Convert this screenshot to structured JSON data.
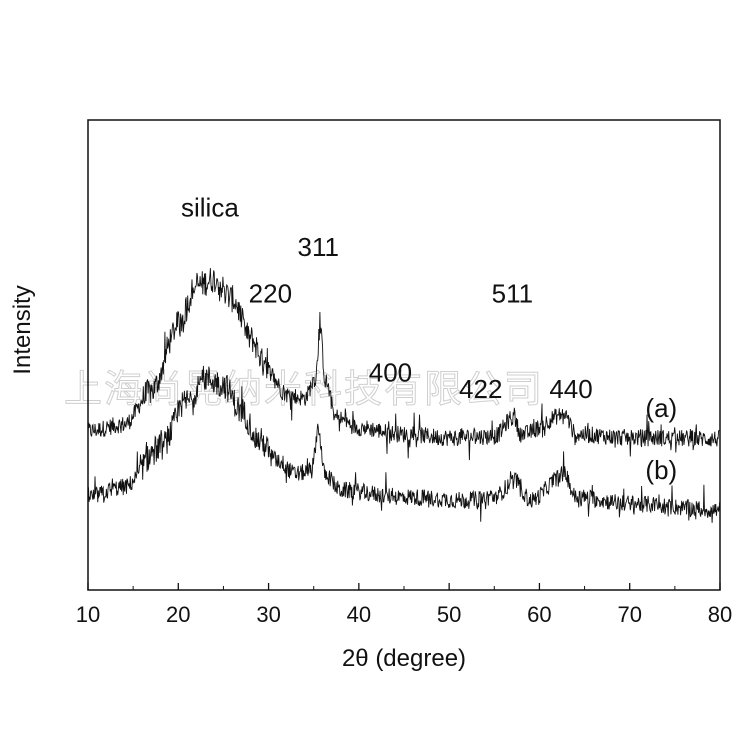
{
  "watermark_text": "上海尚晃纳米科技有限公司",
  "chart_data": {
    "type": "line",
    "title": "",
    "xlabel": "2θ (degree)",
    "ylabel": "Intensity",
    "xlim": [
      10,
      80
    ],
    "x_ticks": [
      10,
      20,
      30,
      40,
      50,
      60,
      70,
      80
    ],
    "y_ticks_shown": false,
    "grid": false,
    "line_color": "#111111",
    "series": [
      {
        "name": "(a)",
        "baseline": 1.0,
        "points": [
          [
            10,
            1.0
          ],
          [
            14,
            1.1
          ],
          [
            17,
            1.6
          ],
          [
            20,
            2.6
          ],
          [
            22,
            3.2
          ],
          [
            24,
            3.3
          ],
          [
            26,
            3.0
          ],
          [
            28,
            2.4
          ],
          [
            30,
            1.9
          ],
          [
            32,
            1.55
          ],
          [
            34,
            1.5
          ],
          [
            35.2,
            1.8
          ],
          [
            35.7,
            2.55
          ],
          [
            36.3,
            1.75
          ],
          [
            37.5,
            1.2
          ],
          [
            40,
            1.05
          ],
          [
            45,
            0.95
          ],
          [
            50,
            0.9
          ],
          [
            55,
            0.92
          ],
          [
            57.1,
            1.2
          ],
          [
            58,
            0.95
          ],
          [
            62.8,
            1.25
          ],
          [
            64,
            0.95
          ],
          [
            70,
            0.9
          ],
          [
            80,
            0.88
          ]
        ]
      },
      {
        "name": "(b)",
        "baseline": 0.0,
        "points": [
          [
            10,
            0.0
          ],
          [
            14,
            0.15
          ],
          [
            18,
            0.75
          ],
          [
            21,
            1.45
          ],
          [
            23,
            1.8
          ],
          [
            25,
            1.7
          ],
          [
            27,
            1.3
          ],
          [
            29,
            0.85
          ],
          [
            31,
            0.55
          ],
          [
            33,
            0.35
          ],
          [
            34.8,
            0.4
          ],
          [
            35.5,
            1.05
          ],
          [
            36.2,
            0.35
          ],
          [
            38,
            0.1
          ],
          [
            45,
            0.0
          ],
          [
            52,
            -0.05
          ],
          [
            55,
            0.0
          ],
          [
            57.3,
            0.25
          ],
          [
            59,
            -0.05
          ],
          [
            62.8,
            0.35
          ],
          [
            64,
            0.0
          ],
          [
            70,
            -0.1
          ],
          [
            80,
            -0.2
          ]
        ]
      }
    ],
    "annotations": [
      {
        "text": "silica",
        "x": 23.5,
        "series": "(a)",
        "level": 4.25
      },
      {
        "text": "311",
        "x": 35.5,
        "series": "(a)",
        "level": 3.65
      },
      {
        "text": "220",
        "x": 30.2,
        "series": "(a)",
        "level": 2.95
      },
      {
        "text": "400",
        "x": 43.5,
        "series": "(a)",
        "level": 1.75
      },
      {
        "text": "511",
        "x": 57.0,
        "series": "(a)",
        "level": 2.95
      },
      {
        "text": "422",
        "x": 53.5,
        "series": "(a)",
        "level": 1.5
      },
      {
        "text": "440",
        "x": 63.5,
        "series": "(a)",
        "level": 1.5
      }
    ]
  }
}
